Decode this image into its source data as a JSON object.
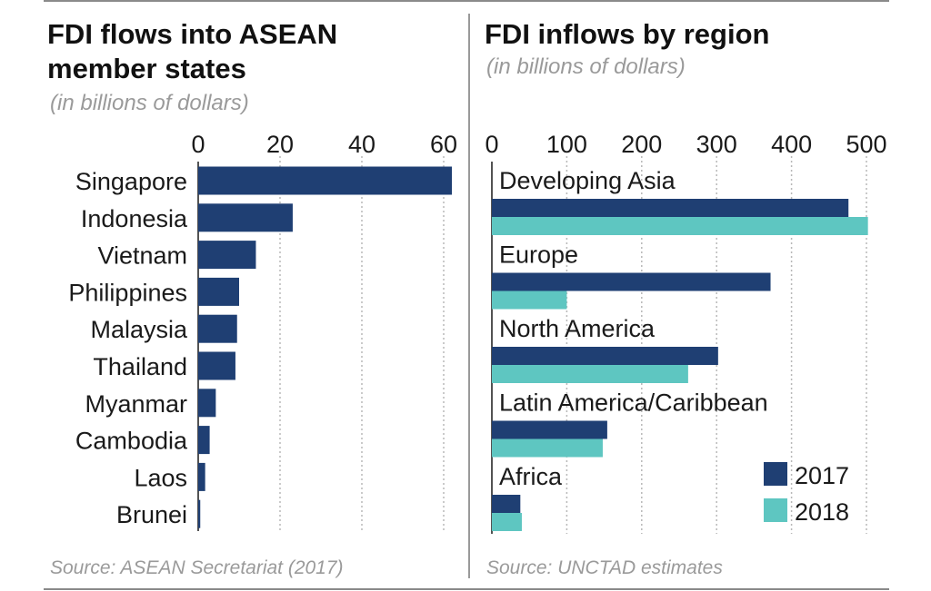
{
  "left_panel": {
    "title_line1": "FDI flows into ASEAN",
    "title_line2": "member states",
    "subtitle": "(in billions of dollars)",
    "source": "Source: ASEAN Secretariat (2017)"
  },
  "right_panel": {
    "title": "FDI inflows by region",
    "subtitle": "(in billions of dollars)",
    "source": "Source: UNCTAD estimates"
  },
  "colors": {
    "dark": "#1f3f73",
    "light": "#5ec6c1",
    "grid": "#b8b8b8"
  },
  "chart_data": [
    {
      "type": "bar",
      "orientation": "horizontal",
      "title": "FDI flows into ASEAN member states",
      "subtitle": "(in billions of dollars)",
      "categories": [
        "Singapore",
        "Indonesia",
        "Vietnam",
        "Philippines",
        "Malaysia",
        "Thailand",
        "Myanmar",
        "Cambodia",
        "Laos",
        "Brunei"
      ],
      "values": [
        62.0,
        23.1,
        14.1,
        10.0,
        9.5,
        9.1,
        4.3,
        2.8,
        1.7,
        0.5
      ],
      "xticks": [
        0,
        20,
        40,
        60
      ],
      "xlim": [
        0,
        65
      ],
      "grid": true
    },
    {
      "type": "bar",
      "orientation": "horizontal",
      "title": "FDI inflows by region",
      "subtitle": "(in billions of dollars)",
      "categories": [
        "Developing Asia",
        "Europe",
        "North America",
        "Latin America/Caribbean",
        "Africa"
      ],
      "series": [
        {
          "name": "2017",
          "values": [
            476,
            372,
            302,
            154,
            38
          ]
        },
        {
          "name": "2018",
          "values": [
            502,
            100,
            262,
            148,
            40
          ]
        }
      ],
      "xticks": [
        0,
        100,
        200,
        300,
        400,
        500
      ],
      "xlim": [
        0,
        510
      ],
      "legend": "bottom-right",
      "grid": true
    }
  ]
}
